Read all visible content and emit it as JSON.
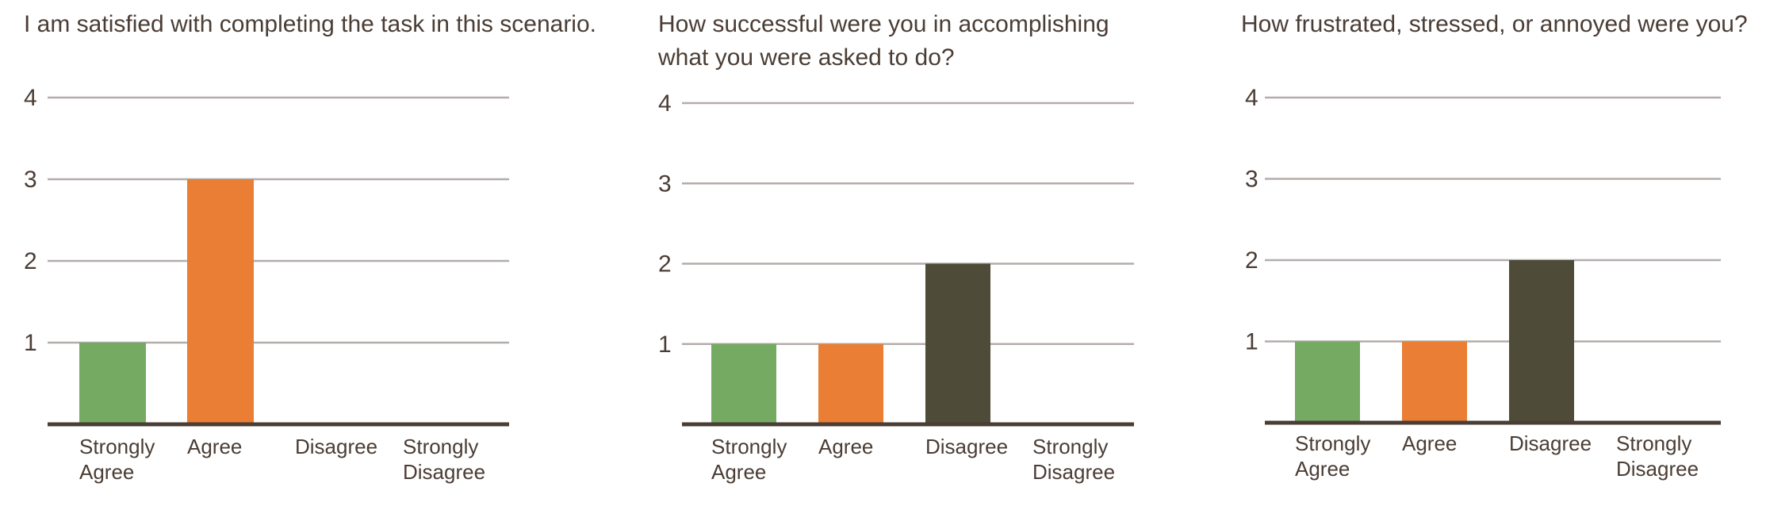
{
  "chart_data": [
    {
      "type": "bar",
      "title": "I am satisfied with completing the task in this scenario.",
      "categories": [
        [
          "Strongly",
          "Agree"
        ],
        [
          "Agree"
        ],
        [
          "Disagree"
        ],
        [
          "Strongly",
          "Disagree"
        ]
      ],
      "values": [
        1,
        3,
        0,
        0
      ],
      "yticks": [
        "1",
        "2",
        "3",
        "4"
      ],
      "ylim": [
        0,
        4
      ],
      "grid": true,
      "colors": [
        "#75aa62",
        "#e97e34",
        "#4e4b38",
        "#4e4b38"
      ]
    },
    {
      "type": "bar",
      "title": "How successful were you in accomplishing what you were asked to do?",
      "categories": [
        [
          "Strongly",
          "Agree"
        ],
        [
          "Agree"
        ],
        [
          "Disagree"
        ],
        [
          "Strongly",
          "Disagree"
        ]
      ],
      "values": [
        1,
        1,
        2,
        0
      ],
      "yticks": [
        "1",
        "2",
        "3",
        "4"
      ],
      "ylim": [
        0,
        4
      ],
      "grid": true,
      "colors": [
        "#75aa62",
        "#e97e34",
        "#4e4b38",
        "#4e4b38"
      ]
    },
    {
      "type": "bar",
      "title": "How frustrated, stressed, or annoyed were you?",
      "categories": [
        [
          "Strongly",
          "Agree"
        ],
        [
          "Agree"
        ],
        [
          "Disagree"
        ],
        [
          "Strongly",
          "Disagree"
        ]
      ],
      "values": [
        1,
        1,
        2,
        0
      ],
      "yticks": [
        "1",
        "2",
        "3",
        "4"
      ],
      "ylim": [
        0,
        4
      ],
      "grid": true,
      "colors": [
        "#75aa62",
        "#e97e34",
        "#4e4b38",
        "#4e4b38"
      ]
    }
  ],
  "colors": {
    "gridline": "#b3adaa",
    "baseline": "#4a3d35",
    "text": "#4a3d35"
  }
}
